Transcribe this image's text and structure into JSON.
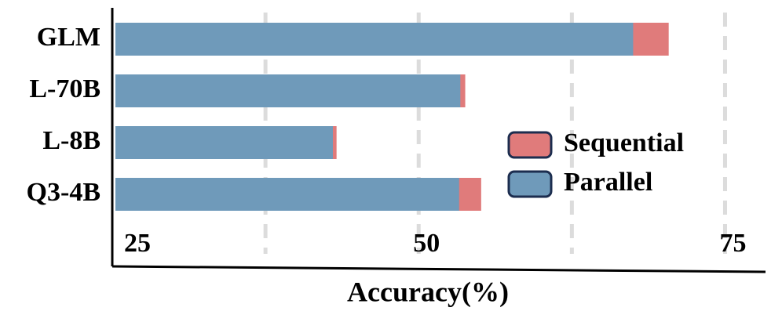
{
  "chart_data": {
    "type": "bar",
    "orientation": "horizontal",
    "x_label": "Accuracy(%)",
    "categories": [
      "GLM",
      "L-70B",
      "L-8B",
      "Q3-4B"
    ],
    "series": [
      {
        "name": "Sequential",
        "color": "#e07b7b",
        "values": [
          70.4,
          53.8,
          43.3,
          55.1
        ]
      },
      {
        "name": "Parallel",
        "color": "#6f9aba",
        "values": [
          67.5,
          53.4,
          43.0,
          53.3
        ]
      }
    ],
    "xlim": [
      25,
      78.3
    ],
    "xticks": [
      25,
      50,
      75
    ],
    "xgrid": [
      37.5,
      50,
      62.5,
      75
    ],
    "grid": true,
    "legend": "right"
  }
}
